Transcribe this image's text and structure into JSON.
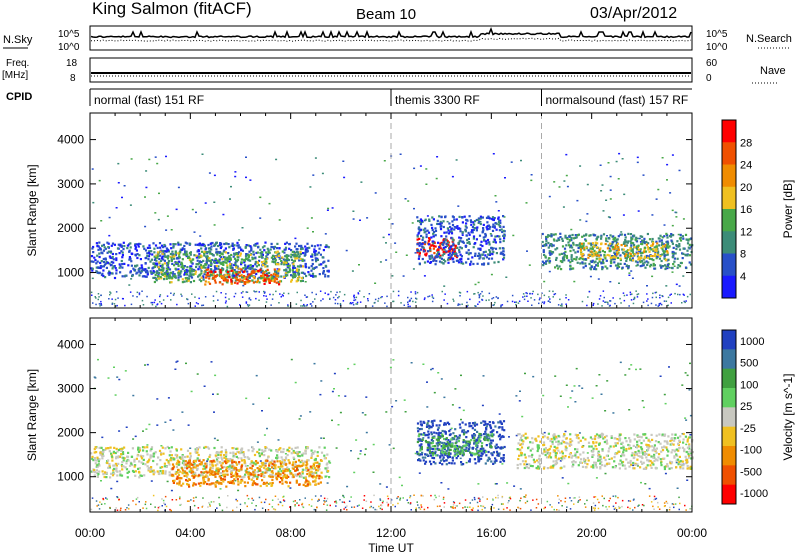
{
  "header": {
    "station": "King Salmon (fitACF)",
    "beam": "Beam 10",
    "date": "03/Apr/2012"
  },
  "strip_labels": {
    "nsky": "N.Sky",
    "nsearch": "N.Search",
    "freq_line1": "Freq.",
    "freq_line2": "[MHz]",
    "nave": "Nave",
    "cpid": "CPID",
    "left_top_ticks": [
      "10^5",
      "10^0"
    ],
    "right_top_ticks": [
      "10^5",
      "10^0"
    ],
    "freq_ticks": [
      "18",
      "8"
    ],
    "nave_ticks": [
      "60",
      "0"
    ]
  },
  "cpid_segments": [
    {
      "label": "normal (fast) 151 RF",
      "start": 0,
      "end": 12
    },
    {
      "label": "themis 3300 RF",
      "start": 12,
      "end": 18
    },
    {
      "label": "normalsound (fast) 157 RF",
      "start": 18,
      "end": 24
    }
  ],
  "colors": {
    "power": [
      "#1a1aff",
      "#2850c8",
      "#3c8c78",
      "#48a848",
      "#f0c020",
      "#f08c00",
      "#f05000",
      "#ff0000"
    ],
    "velocity": [
      "#2040c0",
      "#3c78a0",
      "#40a040",
      "#60d060",
      "#c8c8c0",
      "#f0c020",
      "#f08c00",
      "#f05000",
      "#ff0000"
    ]
  },
  "colorbars": {
    "power": {
      "label": "Power [dB]",
      "ticks": [
        "28",
        "24",
        "20",
        "16",
        "12",
        "8",
        "4"
      ]
    },
    "velocity": {
      "label": "Velocity [m s^-1]",
      "ticks": [
        "1000",
        "500",
        "100",
        "25",
        "-25",
        "-100",
        "-500",
        "-1000"
      ]
    }
  },
  "chart_data": [
    {
      "type": "heatmap",
      "panel": "power",
      "ylabel": "Slant Range [km]",
      "xlabel": "",
      "xlim": [
        0,
        24
      ],
      "ylim": [
        200,
        4600
      ],
      "yticks": [
        "1000",
        "2000",
        "3000",
        "4000"
      ],
      "xticks": [
        "00:00",
        "04:00",
        "08:00",
        "12:00",
        "16:00",
        "20:00",
        "00:00"
      ],
      "regions": [
        {
          "t0": 0,
          "t1": 9.5,
          "r0": 900,
          "r1": 1700,
          "level": 1
        },
        {
          "t0": 2.5,
          "t1": 8.5,
          "r0": 800,
          "r1": 1500,
          "level": 3
        },
        {
          "t0": 4.5,
          "t1": 7.6,
          "r0": 750,
          "r1": 1100,
          "level": 6
        },
        {
          "t0": 13,
          "t1": 14.6,
          "r0": 1300,
          "r1": 1800,
          "level": 7
        },
        {
          "t0": 13,
          "t1": 16.5,
          "r0": 1200,
          "r1": 2300,
          "level": 1
        },
        {
          "t0": 18,
          "t1": 24,
          "r0": 1100,
          "r1": 1900,
          "level": 2
        },
        {
          "t0": 19.5,
          "t1": 23,
          "r0": 1300,
          "r1": 1700,
          "level": 4
        }
      ]
    },
    {
      "type": "heatmap",
      "panel": "velocity",
      "ylabel": "Slant Range [km]",
      "xlabel": "Time UT",
      "xlim": [
        0,
        24
      ],
      "ylim": [
        200,
        4600
      ],
      "yticks": [
        "1000",
        "2000",
        "3000",
        "4000"
      ],
      "xticks": [
        "00:00",
        "04:00",
        "08:00",
        "12:00",
        "16:00",
        "20:00",
        "00:00"
      ],
      "regions": [
        {
          "t0": 0,
          "t1": 9.5,
          "r0": 1000,
          "r1": 1700,
          "level": 4
        },
        {
          "t0": 3.2,
          "t1": 9.2,
          "r0": 800,
          "r1": 1400,
          "level": 6
        },
        {
          "t0": 13,
          "t1": 16.5,
          "r0": 1300,
          "r1": 2300,
          "level": 0
        },
        {
          "t0": 13,
          "t1": 16,
          "r0": 1500,
          "r1": 2000,
          "level": 2
        },
        {
          "t0": 17,
          "t1": 24,
          "r0": 1200,
          "r1": 2000,
          "level": 4
        }
      ]
    }
  ]
}
